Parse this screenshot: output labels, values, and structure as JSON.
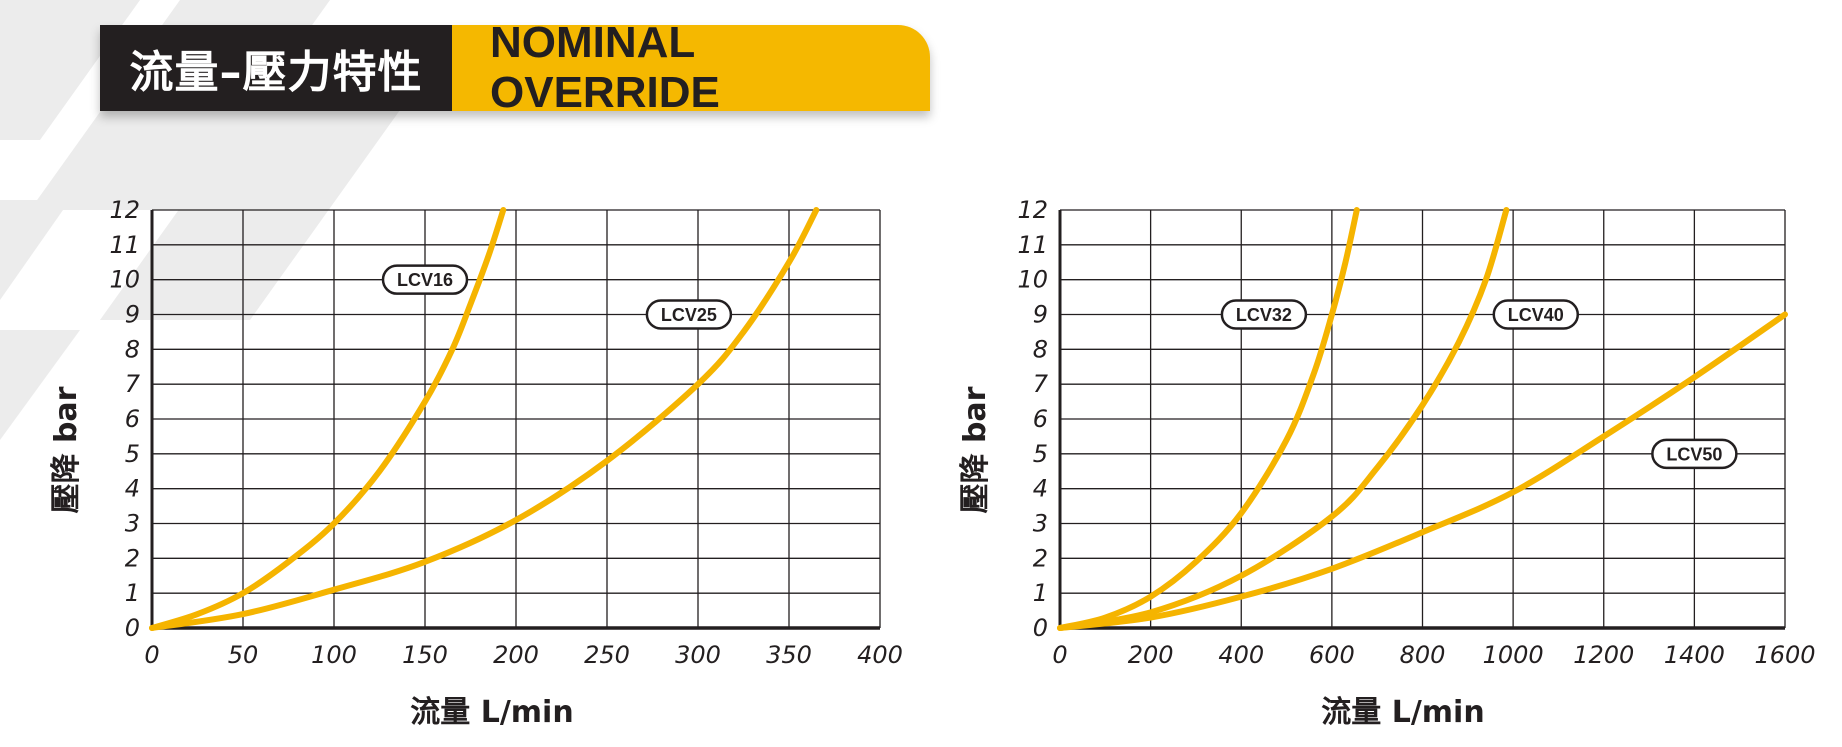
{
  "header": {
    "title_zh": "流量–壓力特性",
    "title_en": "NOMINAL OVERRIDE"
  },
  "colors": {
    "curve": "#f5b400",
    "header_dark": "#231f20",
    "header_accent": "#f5b800"
  },
  "chart_data": [
    {
      "type": "line",
      "xlabel": "流量 L/min",
      "ylabel": "壓降 bar",
      "xlim": [
        0,
        400
      ],
      "ylim": [
        0,
        12
      ],
      "xticks": [
        0,
        50,
        100,
        150,
        200,
        250,
        300,
        350,
        400
      ],
      "yticks": [
        0,
        1,
        2,
        3,
        4,
        5,
        6,
        7,
        8,
        9,
        10,
        11,
        12
      ],
      "grid": true,
      "series": [
        {
          "name": "LCV16",
          "label_pos": [
            150,
            10
          ],
          "x": [
            0,
            25,
            50,
            75,
            100,
            125,
            150,
            165,
            175,
            185,
            193
          ],
          "y": [
            0,
            0.4,
            1.0,
            1.9,
            3.0,
            4.5,
            6.5,
            8.0,
            9.3,
            10.7,
            12
          ]
        },
        {
          "name": "LCV25",
          "label_pos": [
            295,
            9
          ],
          "x": [
            0,
            50,
            100,
            150,
            200,
            250,
            300,
            325,
            350,
            365
          ],
          "y": [
            0,
            0.4,
            1.1,
            1.9,
            3.1,
            4.8,
            7.0,
            8.5,
            10.5,
            12
          ]
        }
      ]
    },
    {
      "type": "line",
      "xlabel": "流量 L/min",
      "ylabel": "壓降 bar",
      "xlim": [
        0,
        1600
      ],
      "ylim": [
        0,
        12
      ],
      "xticks": [
        0,
        200,
        400,
        600,
        800,
        1000,
        1200,
        1400,
        1600
      ],
      "yticks": [
        0,
        1,
        2,
        3,
        4,
        5,
        6,
        7,
        8,
        9,
        10,
        11,
        12
      ],
      "grid": true,
      "series": [
        {
          "name": "LCV32",
          "label_pos": [
            450,
            9
          ],
          "x": [
            0,
            100,
            200,
            300,
            400,
            500,
            560,
            600,
            630,
            655
          ],
          "y": [
            0,
            0.3,
            0.9,
            1.9,
            3.3,
            5.4,
            7.3,
            9.0,
            10.5,
            12
          ]
        },
        {
          "name": "LCV40",
          "label_pos": [
            1050,
            9
          ],
          "x": [
            0,
            200,
            400,
            600,
            700,
            800,
            880,
            940,
            985
          ],
          "y": [
            0,
            0.45,
            1.5,
            3.2,
            4.6,
            6.4,
            8.2,
            10.0,
            12
          ]
        },
        {
          "name": "LCV50",
          "label_pos": [
            1400,
            5
          ],
          "x": [
            0,
            200,
            400,
            600,
            800,
            1000,
            1200,
            1400,
            1600
          ],
          "y": [
            0,
            0.3,
            0.9,
            1.7,
            2.75,
            3.9,
            5.5,
            7.2,
            9.0
          ]
        }
      ]
    }
  ]
}
